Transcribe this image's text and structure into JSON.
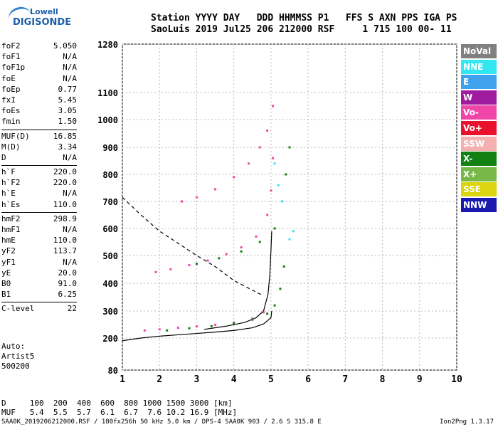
{
  "logo": {
    "line1": "Lowell",
    "line2": "DIGISONDE"
  },
  "header": {
    "row1": "Station YYYY DAY   DDD HHMMSS P1   FFS S AXN PPS IGA PS",
    "row2": "SaoLuis 2019 Jul25 206 212000 RSF     1 715 100 00- 11"
  },
  "params": [
    {
      "name": "foF2",
      "value": "5.050"
    },
    {
      "name": "foF1",
      "value": "N/A"
    },
    {
      "name": "foF1p",
      "value": "N/A"
    },
    {
      "name": "foE",
      "value": "N/A"
    },
    {
      "name": "foEp",
      "value": "0.77"
    },
    {
      "name": "fxI",
      "value": "5.45"
    },
    {
      "name": "foEs",
      "value": "3.05"
    },
    {
      "name": "fmin",
      "value": "1.50"
    },
    {
      "name": "MUF(D)",
      "value": "16.85",
      "sep": true
    },
    {
      "name": "M(D)",
      "value": "3.34"
    },
    {
      "name": "D",
      "value": "N/A"
    },
    {
      "name": "h`F",
      "value": "220.0",
      "sep": true
    },
    {
      "name": "h`F2",
      "value": "220.0"
    },
    {
      "name": "h`E",
      "value": "N/A"
    },
    {
      "name": "h`Es",
      "value": "110.0"
    },
    {
      "name": "hmF2",
      "value": "298.9",
      "sep": true
    },
    {
      "name": "hmF1",
      "value": "N/A"
    },
    {
      "name": "hmE",
      "value": "110.0"
    },
    {
      "name": "yF2",
      "value": "113.7"
    },
    {
      "name": "yF1",
      "value": "N/A"
    },
    {
      "name": "yE",
      "value": "20.0"
    },
    {
      "name": "B0",
      "value": "91.0"
    },
    {
      "name": "B1",
      "value": "6.25"
    },
    {
      "name": "C-level",
      "value": "22",
      "sep": true
    }
  ],
  "auto": {
    "line1": "Auto:",
    "line2": "Artist5",
    "line3": "500200"
  },
  "dtable": {
    "row1": "D     100  200  400  600  800 1000 1500 3000 [km]",
    "row2": "MUF   5.4  5.5  5.7  6.1  6.7  7.6 10.2 16.9 [MHz]"
  },
  "footer": {
    "left": "SAA0K_2019206212000.RSF / 180fx256h 50 kHz 5.0 km / DPS-4 SAA0K 903 / 2.6 S 315.8 E",
    "right": "Ion2Png 1.3.17"
  },
  "legend": [
    {
      "label": "NoVal",
      "color": "#808080"
    },
    {
      "label": "NNE",
      "color": "#33e6f2"
    },
    {
      "label": "E",
      "color": "#3fa2ec"
    },
    {
      "label": "W",
      "color": "#a01aa0"
    },
    {
      "label": "Vo-",
      "color": "#f046a8"
    },
    {
      "label": "Vo+",
      "color": "#e8102c"
    },
    {
      "label": "SSW",
      "color": "#f4b0b0"
    },
    {
      "label": "X-",
      "color": "#128012"
    },
    {
      "label": "X+",
      "color": "#78b848"
    },
    {
      "label": "SSE",
      "color": "#dcd40e"
    },
    {
      "label": "NNW",
      "color": "#1a1ab0"
    }
  ],
  "chart_data": {
    "type": "scatter",
    "xlim": [
      1,
      10
    ],
    "ylim": [
      80,
      1280
    ],
    "x_ticks": [
      "1",
      "2",
      "3",
      "4",
      "5",
      "6",
      "7",
      "8",
      "9",
      "10"
    ],
    "y_ticks": [
      "80",
      "200",
      "300",
      "400",
      "500",
      "600",
      "700",
      "800",
      "900",
      "1000",
      "1100",
      "1280"
    ],
    "grid": true,
    "series": [
      {
        "name": "Vo-",
        "color": "#f046a8",
        "points": [
          [
            1.6,
            228
          ],
          [
            2.0,
            232
          ],
          [
            2.5,
            238
          ],
          [
            3.0,
            243
          ],
          [
            3.5,
            249
          ],
          [
            4.0,
            257
          ],
          [
            4.5,
            272
          ],
          [
            4.8,
            295
          ],
          [
            1.9,
            440
          ],
          [
            2.3,
            450
          ],
          [
            2.8,
            465
          ],
          [
            3.3,
            482
          ],
          [
            3.8,
            505
          ],
          [
            4.2,
            530
          ],
          [
            4.6,
            570
          ],
          [
            4.9,
            650
          ],
          [
            5.0,
            740
          ],
          [
            5.05,
            860
          ],
          [
            2.6,
            700
          ],
          [
            3.0,
            715
          ],
          [
            3.5,
            745
          ],
          [
            4.0,
            790
          ],
          [
            4.4,
            840
          ],
          [
            4.7,
            900
          ],
          [
            4.9,
            960
          ],
          [
            5.05,
            1050
          ]
        ]
      },
      {
        "name": "X-",
        "color": "#128012",
        "points": [
          [
            2.2,
            228
          ],
          [
            2.8,
            236
          ],
          [
            3.4,
            244
          ],
          [
            4.0,
            255
          ],
          [
            4.5,
            268
          ],
          [
            4.9,
            290
          ],
          [
            5.1,
            320
          ],
          [
            5.25,
            380
          ],
          [
            5.35,
            460
          ],
          [
            3.0,
            470
          ],
          [
            3.6,
            490
          ],
          [
            4.2,
            515
          ],
          [
            4.7,
            550
          ],
          [
            5.1,
            600
          ],
          [
            5.3,
            700
          ],
          [
            5.4,
            800
          ],
          [
            5.5,
            900
          ]
        ]
      },
      {
        "name": "NNE",
        "color": "#33e6f2",
        "points": [
          [
            5.1,
            840
          ],
          [
            5.2,
            760
          ],
          [
            5.3,
            700
          ],
          [
            5.5,
            560
          ],
          [
            5.6,
            590
          ]
        ]
      }
    ],
    "curves": [
      {
        "style": "solid",
        "points": [
          [
            1.0,
            190
          ],
          [
            1.5,
            200
          ],
          [
            2.0,
            207
          ],
          [
            2.5,
            212
          ],
          [
            3.0,
            217
          ],
          [
            3.5,
            222
          ],
          [
            4.0,
            228
          ],
          [
            4.5,
            238
          ],
          [
            4.8,
            252
          ],
          [
            5.0,
            275
          ],
          [
            5.02,
            300
          ]
        ]
      },
      {
        "style": "solid",
        "points": [
          [
            3.2,
            232
          ],
          [
            3.8,
            244
          ],
          [
            4.3,
            258
          ],
          [
            4.6,
            275
          ],
          [
            4.8,
            300
          ],
          [
            4.92,
            360
          ],
          [
            4.97,
            430
          ],
          [
            5.0,
            520
          ],
          [
            5.02,
            590
          ]
        ]
      },
      {
        "style": "dashed",
        "points": [
          [
            1.0,
            715
          ],
          [
            1.5,
            650
          ],
          [
            2.0,
            590
          ],
          [
            2.5,
            545
          ],
          [
            3.0,
            500
          ],
          [
            3.5,
            460
          ],
          [
            4.0,
            410
          ],
          [
            4.5,
            375
          ],
          [
            4.8,
            355
          ]
        ]
      }
    ]
  }
}
